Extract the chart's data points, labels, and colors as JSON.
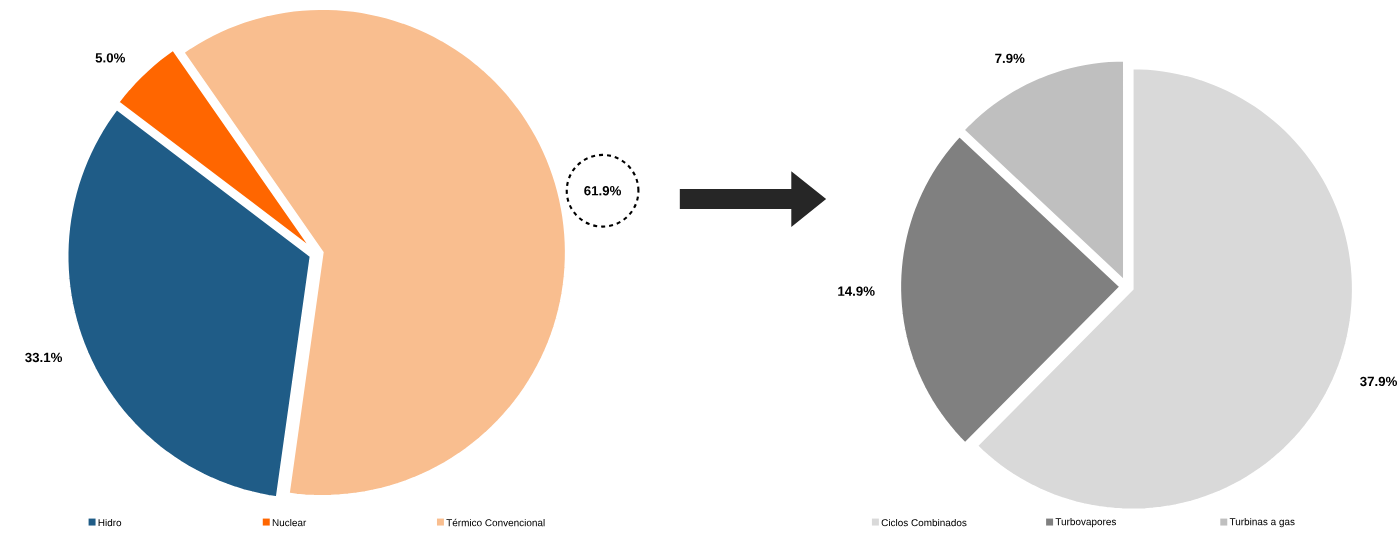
{
  "chart_data": [
    {
      "type": "pie",
      "categories": [
        "Hidro",
        "Nuclear",
        "Térmico Convencional"
      ],
      "values": [
        33.1,
        5.0,
        61.9
      ],
      "colors": [
        "#1f5c87",
        "#ff6600",
        "#f9be8f"
      ],
      "value_labels": [
        "33.1%",
        "5.0%",
        "61.9%"
      ],
      "legend": "bottom"
    },
    {
      "type": "pie",
      "categories": [
        "Ciclos Combinados",
        "Turbovapores",
        "Turbinas a gas"
      ],
      "values": [
        37.9,
        14.9,
        7.9
      ],
      "colors": [
        "#d9d9d9",
        "#808080",
        "#bfbfbf"
      ],
      "value_labels": [
        "37.9%",
        "14.9%",
        "7.9%"
      ],
      "legend": "bottom"
    }
  ]
}
